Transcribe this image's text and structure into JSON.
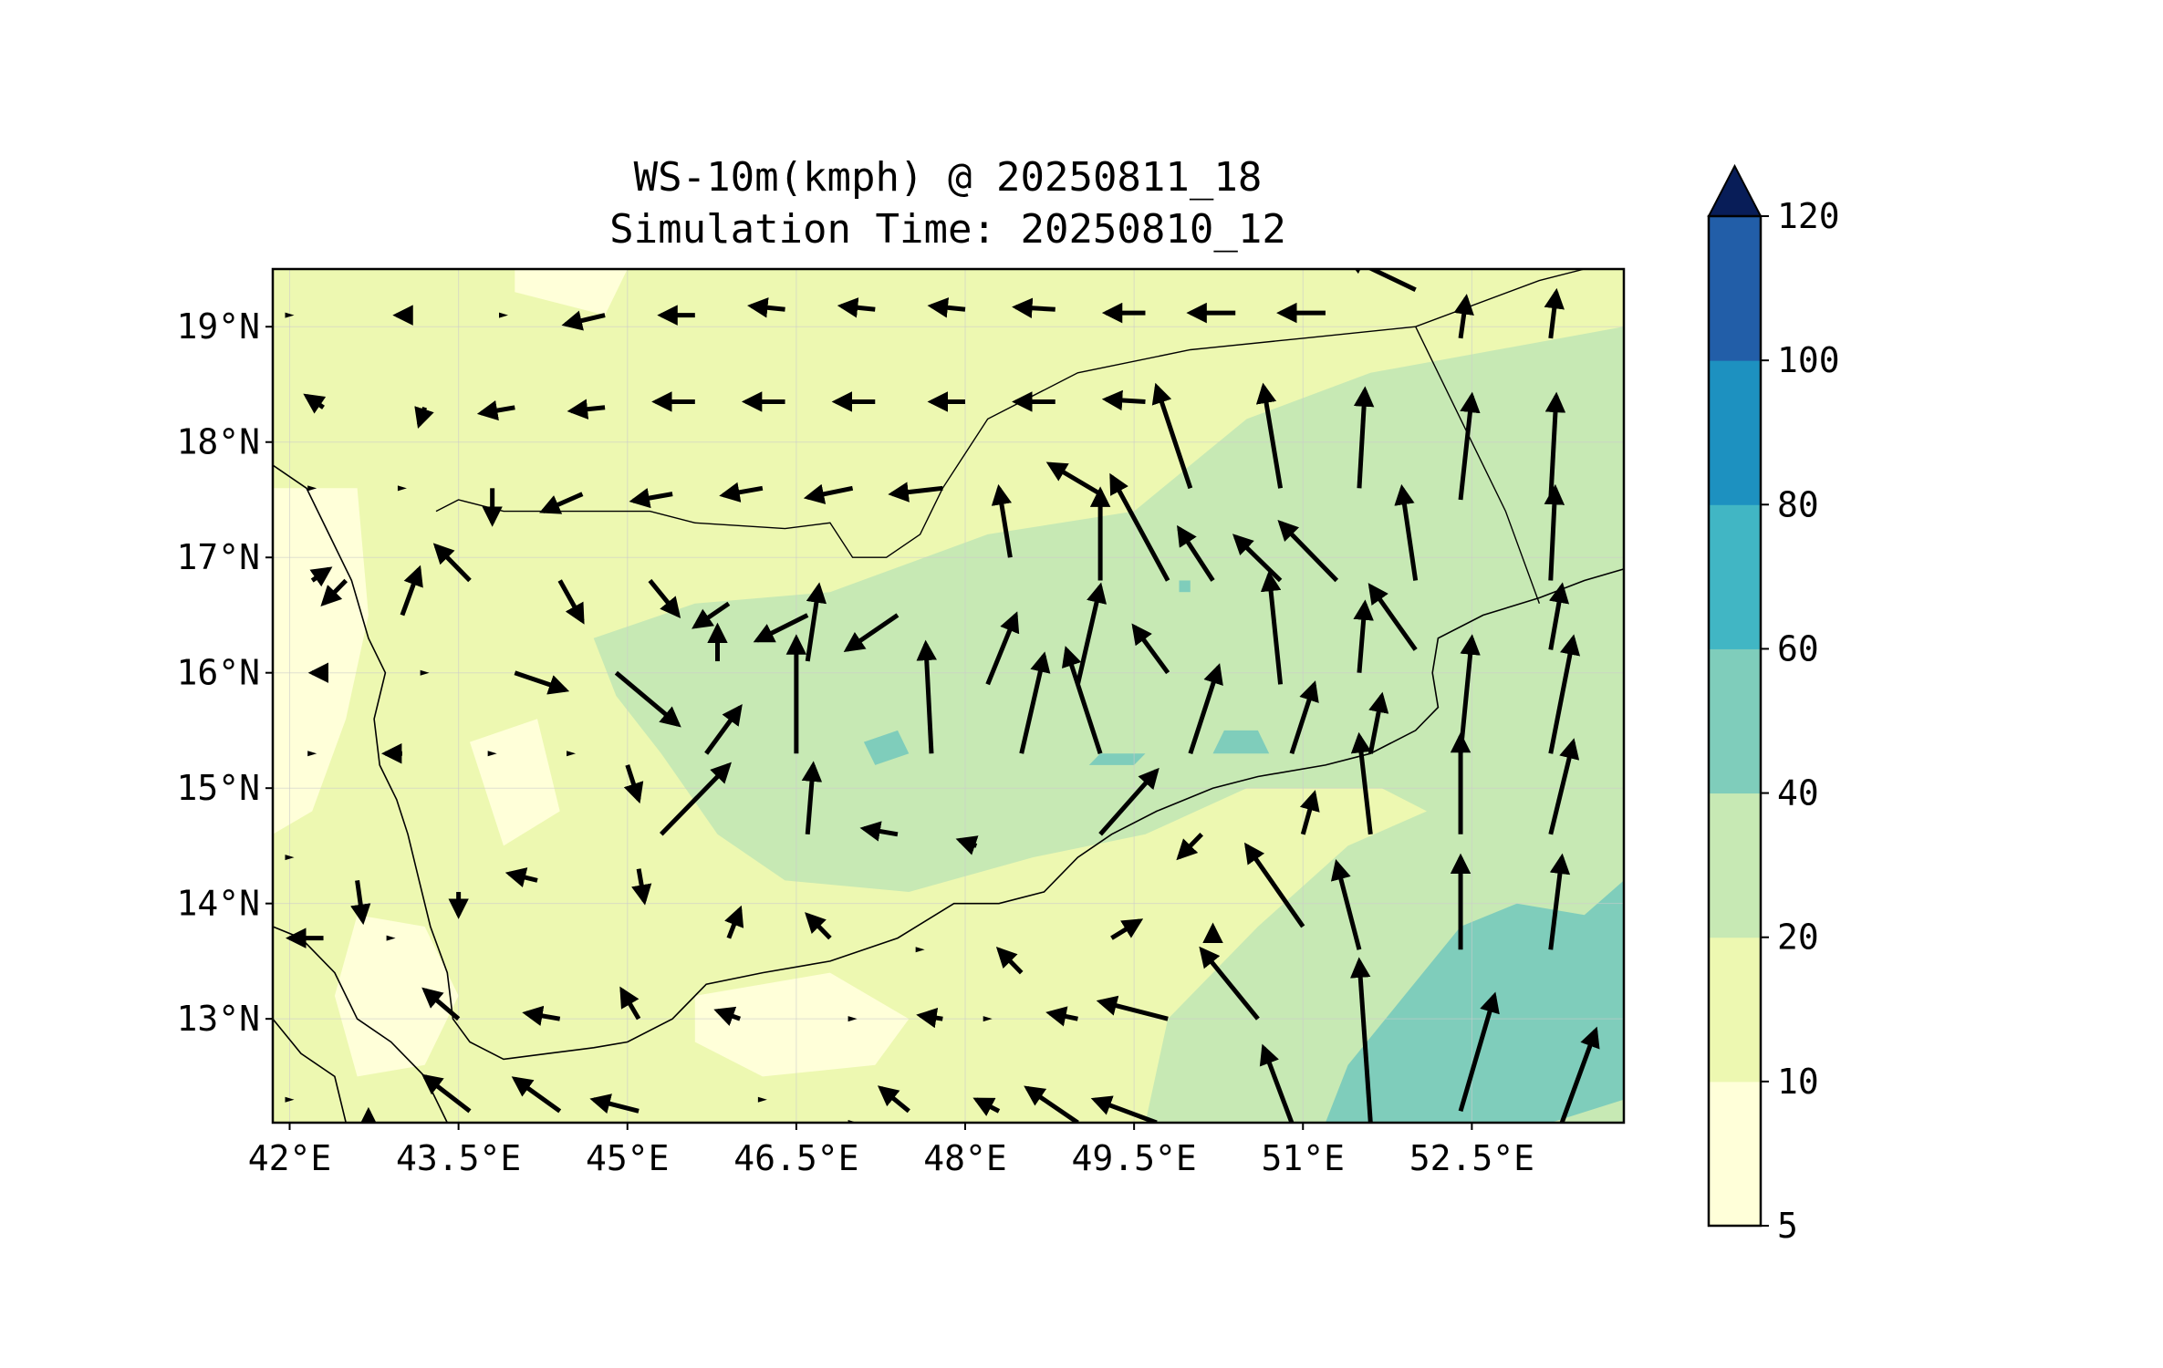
{
  "title": {
    "line1": "WS-10m(kmph) @ 20250811_18",
    "line2": "Simulation Time: 20250810_12"
  },
  "map": {
    "lon_range": [
      41.85,
      53.85
    ],
    "lat_range": [
      12.1,
      19.5
    ],
    "lon_ticks": [
      {
        "value": 42.0,
        "label": "42°E"
      },
      {
        "value": 43.5,
        "label": "43.5°E"
      },
      {
        "value": 45.0,
        "label": "45°E"
      },
      {
        "value": 46.5,
        "label": "46.5°E"
      },
      {
        "value": 48.0,
        "label": "48°E"
      },
      {
        "value": 49.5,
        "label": "49.5°E"
      },
      {
        "value": 51.0,
        "label": "51°E"
      },
      {
        "value": 52.5,
        "label": "52.5°E"
      }
    ],
    "lat_ticks": [
      {
        "value": 13,
        "label": "13°N"
      },
      {
        "value": 14,
        "label": "14°N"
      },
      {
        "value": 15,
        "label": "15°N"
      },
      {
        "value": 16,
        "label": "16°N"
      },
      {
        "value": 17,
        "label": "17°N"
      },
      {
        "value": 18,
        "label": "18°N"
      },
      {
        "value": 19,
        "label": "19°N"
      }
    ],
    "gridlines": true
  },
  "colorbar": {
    "levels": [
      5,
      10,
      20,
      40,
      60,
      80,
      100,
      120
    ],
    "labels": [
      "5",
      "10",
      "20",
      "40",
      "60",
      "80",
      "100",
      "120"
    ],
    "colors": [
      "#ffffd9",
      "#edf8b1",
      "#c7e9b4",
      "#7fcdbb",
      "#41b6c4",
      "#1d91c0",
      "#225ea8",
      "#0c2c84"
    ],
    "extend_color": "#081d58",
    "extend": "max"
  },
  "field_colors": {
    "lt10": "#ffffd9",
    "10_20": "#edf8b1",
    "20_40": "#c7e9b4",
    "40_60": "#7fcdbb"
  },
  "wind_zones": {
    "zone_10_20": [
      [
        41.85,
        19.5
      ],
      [
        53.85,
        19.5
      ],
      [
        53.85,
        12.1
      ],
      [
        41.85,
        12.1
      ]
    ],
    "zone_lt10": [
      [
        [
          41.85,
          17.6
        ],
        [
          42.6,
          17.6
        ],
        [
          42.7,
          16.5
        ],
        [
          42.5,
          15.6
        ],
        [
          42.2,
          14.8
        ],
        [
          41.85,
          14.6
        ]
      ],
      [
        [
          42.6,
          13.9
        ],
        [
          43.2,
          13.8
        ],
        [
          43.5,
          13.2
        ],
        [
          43.2,
          12.6
        ],
        [
          42.6,
          12.5
        ],
        [
          42.4,
          13.2
        ]
      ],
      [
        [
          45.6,
          13.2
        ],
        [
          46.8,
          13.4
        ],
        [
          47.5,
          13.0
        ],
        [
          47.2,
          12.6
        ],
        [
          46.2,
          12.5
        ],
        [
          45.6,
          12.8
        ]
      ],
      [
        [
          44.0,
          19.3
        ],
        [
          44.8,
          19.1
        ],
        [
          45.0,
          19.5
        ],
        [
          44.0,
          19.5
        ]
      ],
      [
        [
          43.6,
          15.4
        ],
        [
          44.2,
          15.6
        ],
        [
          44.4,
          14.8
        ],
        [
          43.9,
          14.5
        ]
      ]
    ],
    "zone_20_40": [
      [
        [
          44.7,
          16.3
        ],
        [
          45.6,
          16.6
        ],
        [
          46.8,
          16.7
        ],
        [
          48.2,
          17.2
        ],
        [
          49.5,
          17.4
        ],
        [
          50.5,
          18.2
        ],
        [
          51.6,
          18.6
        ],
        [
          53.85,
          19.0
        ],
        [
          53.85,
          12.1
        ],
        [
          49.6,
          12.1
        ],
        [
          49.8,
          13.0
        ],
        [
          50.6,
          13.8
        ],
        [
          51.4,
          14.5
        ],
        [
          52.1,
          14.8
        ],
        [
          51.7,
          15.0
        ],
        [
          50.5,
          15.0
        ],
        [
          49.6,
          14.6
        ],
        [
          48.6,
          14.4
        ],
        [
          47.5,
          14.1
        ],
        [
          46.4,
          14.2
        ],
        [
          45.8,
          14.6
        ],
        [
          45.3,
          15.3
        ],
        [
          44.9,
          15.8
        ]
      ]
    ],
    "zone_40_60": [
      [
        [
          51.2,
          12.1
        ],
        [
          51.4,
          12.6
        ],
        [
          51.9,
          13.2
        ],
        [
          52.4,
          13.8
        ],
        [
          52.9,
          14.0
        ],
        [
          53.5,
          13.9
        ],
        [
          53.85,
          14.2
        ],
        [
          53.85,
          12.3
        ],
        [
          53.2,
          12.1
        ]
      ],
      [
        [
          47.1,
          15.4
        ],
        [
          47.4,
          15.5
        ],
        [
          47.5,
          15.3
        ],
        [
          47.2,
          15.2
        ]
      ],
      [
        [
          49.2,
          15.3
        ],
        [
          49.6,
          15.3
        ],
        [
          49.5,
          15.2
        ],
        [
          49.1,
          15.2
        ]
      ],
      [
        [
          50.3,
          15.5
        ],
        [
          50.6,
          15.5
        ],
        [
          50.7,
          15.3
        ],
        [
          50.2,
          15.3
        ]
      ],
      [
        [
          49.9,
          16.8
        ],
        [
          50.0,
          16.8
        ],
        [
          50.0,
          16.7
        ],
        [
          49.9,
          16.7
        ]
      ]
    ]
  },
  "coastlines": [
    [
      [
        41.85,
        17.8
      ],
      [
        42.15,
        17.6
      ],
      [
        42.35,
        17.2
      ],
      [
        42.55,
        16.8
      ],
      [
        42.7,
        16.3
      ],
      [
        42.85,
        16.0
      ],
      [
        42.75,
        15.6
      ],
      [
        42.8,
        15.2
      ],
      [
        42.95,
        14.9
      ],
      [
        43.05,
        14.6
      ],
      [
        43.15,
        14.2
      ],
      [
        43.25,
        13.8
      ],
      [
        43.4,
        13.4
      ],
      [
        43.45,
        13.0
      ],
      [
        43.6,
        12.8
      ],
      [
        43.9,
        12.65
      ],
      [
        44.3,
        12.7
      ],
      [
        44.7,
        12.75
      ],
      [
        45.0,
        12.8
      ],
      [
        45.4,
        13.0
      ],
      [
        45.7,
        13.3
      ],
      [
        46.2,
        13.4
      ],
      [
        46.8,
        13.5
      ],
      [
        47.4,
        13.7
      ],
      [
        47.9,
        14.0
      ],
      [
        48.3,
        14.0
      ],
      [
        48.7,
        14.1
      ],
      [
        49.0,
        14.4
      ],
      [
        49.3,
        14.6
      ],
      [
        49.7,
        14.8
      ],
      [
        50.2,
        15.0
      ],
      [
        50.6,
        15.1
      ],
      [
        51.2,
        15.2
      ],
      [
        51.6,
        15.3
      ],
      [
        52.0,
        15.5
      ],
      [
        52.2,
        15.7
      ],
      [
        52.15,
        16.0
      ],
      [
        52.2,
        16.3
      ],
      [
        52.6,
        16.5
      ],
      [
        53.1,
        16.65
      ],
      [
        53.5,
        16.8
      ],
      [
        53.85,
        16.9
      ]
    ],
    [
      [
        41.85,
        13.8
      ],
      [
        42.1,
        13.7
      ],
      [
        42.4,
        13.4
      ],
      [
        42.6,
        13.0
      ],
      [
        42.9,
        12.8
      ],
      [
        43.2,
        12.5
      ],
      [
        43.4,
        12.1
      ]
    ],
    [
      [
        41.85,
        13.0
      ],
      [
        42.1,
        12.7
      ],
      [
        42.4,
        12.5
      ],
      [
        42.5,
        12.1
      ]
    ]
  ],
  "borders": [
    [
      [
        43.3,
        17.4
      ],
      [
        43.5,
        17.5
      ],
      [
        43.9,
        17.4
      ],
      [
        44.6,
        17.4
      ],
      [
        45.2,
        17.4
      ],
      [
        45.6,
        17.3
      ],
      [
        46.4,
        17.25
      ],
      [
        46.8,
        17.3
      ],
      [
        47.0,
        17.0
      ],
      [
        47.3,
        17.0
      ],
      [
        47.6,
        17.2
      ],
      [
        47.8,
        17.6
      ],
      [
        48.2,
        18.2
      ],
      [
        49.0,
        18.6
      ],
      [
        50.0,
        18.8
      ],
      [
        51.0,
        18.9
      ],
      [
        52.0,
        19.0
      ],
      [
        53.1,
        19.4
      ],
      [
        53.5,
        19.5
      ]
    ],
    [
      [
        52.0,
        19.0
      ],
      [
        52.4,
        18.2
      ],
      [
        52.8,
        17.4
      ],
      [
        53.1,
        16.6
      ]
    ]
  ],
  "wind_vectors": [
    [
      42.0,
      19.1,
      0,
      0
    ],
    [
      43.0,
      19.1,
      -0.05,
      0
    ],
    [
      43.9,
      19.1,
      0,
      0
    ],
    [
      44.8,
      19.1,
      -0.35,
      -0.08
    ],
    [
      45.6,
      19.1,
      -0.3,
      0
    ],
    [
      46.4,
      19.15,
      -0.3,
      0.03
    ],
    [
      47.2,
      19.15,
      -0.3,
      0.03
    ],
    [
      48.0,
      19.15,
      -0.3,
      0.03
    ],
    [
      48.8,
      19.15,
      -0.35,
      0.02
    ],
    [
      49.6,
      19.12,
      -0.35,
      0
    ],
    [
      50.4,
      19.12,
      -0.4,
      0
    ],
    [
      51.2,
      19.12,
      -0.4,
      0
    ],
    [
      52.0,
      19.32,
      -0.6,
      0.28
    ],
    [
      52.4,
      18.9,
      0.05,
      0.35
    ],
    [
      53.2,
      18.9,
      0.05,
      0.4
    ],
    [
      42.3,
      18.3,
      -0.15,
      0.1
    ],
    [
      43.2,
      18.3,
      -0.05,
      -0.15
    ],
    [
      44.0,
      18.3,
      -0.3,
      -0.05
    ],
    [
      44.8,
      18.3,
      -0.3,
      -0.03
    ],
    [
      45.6,
      18.35,
      -0.35,
      0
    ],
    [
      46.4,
      18.35,
      -0.35,
      0
    ],
    [
      47.2,
      18.35,
      -0.35,
      0
    ],
    [
      48.0,
      18.35,
      -0.3,
      0
    ],
    [
      48.8,
      18.35,
      -0.35,
      0
    ],
    [
      49.6,
      18.35,
      -0.35,
      0.02
    ],
    [
      50.0,
      17.6,
      -0.3,
      0.88
    ],
    [
      50.8,
      17.6,
      -0.15,
      0.88
    ],
    [
      51.5,
      17.6,
      0.05,
      0.85
    ],
    [
      52.4,
      17.5,
      0.1,
      0.9
    ],
    [
      53.2,
      17.5,
      0.05,
      0.9
    ],
    [
      42.2,
      17.6,
      0,
      0
    ],
    [
      43.0,
      17.6,
      0,
      0
    ],
    [
      43.8,
      17.6,
      0,
      -0.3
    ],
    [
      44.6,
      17.55,
      -0.35,
      -0.15
    ],
    [
      45.4,
      17.55,
      -0.35,
      -0.06
    ],
    [
      46.2,
      17.6,
      -0.35,
      -0.06
    ],
    [
      47.0,
      17.6,
      -0.4,
      -0.08
    ],
    [
      47.8,
      17.6,
      -0.45,
      -0.05
    ],
    [
      48.4,
      17.0,
      -0.1,
      0.6
    ],
    [
      49.2,
      17.55,
      -0.45,
      0.26
    ],
    [
      49.2,
      16.8,
      0,
      0.78
    ],
    [
      49.8,
      16.8,
      -0.5,
      0.9
    ],
    [
      50.2,
      16.8,
      -0.3,
      0.45
    ],
    [
      50.8,
      16.8,
      -0.4,
      0.38
    ],
    [
      51.3,
      16.8,
      -0.5,
      0.5
    ],
    [
      52.0,
      16.8,
      -0.12,
      0.8
    ],
    [
      53.2,
      16.8,
      0.04,
      0.8
    ],
    [
      42.2,
      16.8,
      0.15,
      0.1
    ],
    [
      42.5,
      16.8,
      -0.2,
      -0.2
    ],
    [
      43.0,
      16.5,
      0.15,
      0.4
    ],
    [
      43.6,
      16.8,
      -0.3,
      0.3
    ],
    [
      44.4,
      16.8,
      0.2,
      -0.35
    ],
    [
      45.2,
      16.8,
      0.25,
      -0.3
    ],
    [
      45.9,
      16.6,
      -0.3,
      -0.2
    ],
    [
      46.6,
      16.5,
      -0.45,
      -0.22
    ],
    [
      47.4,
      16.5,
      -0.45,
      -0.3
    ],
    [
      48.2,
      15.9,
      0.25,
      0.6
    ],
    [
      49.0,
      15.9,
      0.2,
      0.85
    ],
    [
      49.8,
      16.0,
      -0.3,
      0.4
    ],
    [
      50.8,
      15.9,
      -0.1,
      0.95
    ],
    [
      51.5,
      16.0,
      0.05,
      0.6
    ],
    [
      52.0,
      16.2,
      -0.4,
      0.55
    ],
    [
      53.2,
      16.2,
      0.1,
      0.55
    ],
    [
      42.3,
      16.0,
      -0.1,
      0
    ],
    [
      43.2,
      16.0,
      0,
      0
    ],
    [
      44.0,
      16.0,
      0.45,
      -0.15
    ],
    [
      44.9,
      16.0,
      0.55,
      -0.45
    ],
    [
      45.8,
      16.1,
      0,
      0.3
    ],
    [
      46.5,
      15.3,
      0,
      1.0
    ],
    [
      46.6,
      16.1,
      0.1,
      0.65
    ],
    [
      47.7,
      15.3,
      -0.05,
      0.95
    ],
    [
      48.5,
      15.3,
      0.2,
      0.85
    ],
    [
      49.2,
      15.3,
      -0.3,
      0.9
    ],
    [
      50.0,
      15.3,
      0.25,
      0.75
    ],
    [
      50.9,
      15.3,
      0.2,
      0.6
    ],
    [
      51.6,
      15.3,
      0.1,
      0.5
    ],
    [
      52.4,
      15.3,
      0.1,
      1.0
    ],
    [
      53.2,
      15.3,
      0.2,
      1.0
    ],
    [
      42.2,
      15.3,
      0,
      0
    ],
    [
      43.0,
      15.3,
      -0.15,
      0
    ],
    [
      43.8,
      15.3,
      0,
      0
    ],
    [
      44.5,
      15.3,
      0,
      0
    ],
    [
      45.0,
      15.2,
      0.1,
      -0.3
    ],
    [
      45.7,
      15.3,
      0.3,
      0.4
    ],
    [
      45.3,
      14.6,
      0.6,
      0.6
    ],
    [
      46.6,
      14.6,
      0.05,
      0.6
    ],
    [
      47.4,
      14.6,
      -0.3,
      0.05
    ],
    [
      48.1,
      14.5,
      -0.15,
      0.05
    ],
    [
      49.2,
      14.6,
      0.5,
      0.55
    ],
    [
      50.1,
      14.6,
      -0.2,
      -0.2
    ],
    [
      51.0,
      14.6,
      0.1,
      0.35
    ],
    [
      51.6,
      14.6,
      -0.1,
      0.85
    ],
    [
      52.4,
      14.6,
      0,
      0.85
    ],
    [
      53.2,
      14.6,
      0.2,
      0.8
    ],
    [
      42.0,
      14.4,
      0,
      0
    ],
    [
      42.6,
      14.2,
      0.05,
      -0.35
    ],
    [
      43.5,
      14.1,
      0,
      -0.2
    ],
    [
      44.2,
      14.2,
      -0.25,
      0.06
    ],
    [
      45.1,
      14.3,
      0.05,
      -0.28
    ],
    [
      45.9,
      13.7,
      0.1,
      0.25
    ],
    [
      46.8,
      13.7,
      -0.2,
      0.2
    ],
    [
      47.6,
      13.6,
      0,
      0
    ],
    [
      48.5,
      13.4,
      -0.2,
      0.2
    ],
    [
      49.3,
      13.7,
      0.25,
      0.15
    ],
    [
      50.2,
      13.7,
      0,
      0.1
    ],
    [
      51.0,
      13.8,
      -0.5,
      0.7
    ],
    [
      51.5,
      13.6,
      -0.2,
      0.75
    ],
    [
      52.4,
      13.6,
      0,
      0.8
    ],
    [
      53.2,
      13.6,
      0.1,
      0.8
    ],
    [
      42.3,
      13.7,
      -0.3,
      0
    ],
    [
      42.9,
      13.7,
      0,
      0
    ],
    [
      43.5,
      13.0,
      -0.3,
      0.25
    ],
    [
      44.4,
      13.0,
      -0.3,
      0.05
    ],
    [
      45.1,
      13.0,
      -0.15,
      0.25
    ],
    [
      46.0,
      13.0,
      -0.2,
      0.07
    ],
    [
      47.0,
      13.0,
      0,
      0
    ],
    [
      47.8,
      13.0,
      -0.2,
      0.03
    ],
    [
      48.2,
      13.0,
      0,
      0
    ],
    [
      49.0,
      13.0,
      -0.25,
      0.05
    ],
    [
      49.8,
      13.0,
      -0.6,
      0.15
    ],
    [
      50.6,
      13.0,
      -0.5,
      0.6
    ],
    [
      51.6,
      12.1,
      -0.1,
      1.4
    ],
    [
      52.4,
      12.2,
      0.3,
      1.0
    ],
    [
      53.3,
      12.1,
      0.3,
      0.8
    ],
    [
      42.0,
      12.3,
      0,
      0
    ],
    [
      42.7,
      12.1,
      0,
      0.1
    ],
    [
      43.6,
      12.2,
      -0.4,
      0.3
    ],
    [
      44.4,
      12.2,
      -0.4,
      0.28
    ],
    [
      45.1,
      12.2,
      -0.4,
      0.1
    ],
    [
      46.2,
      12.3,
      0,
      0
    ],
    [
      47.0,
      12.1,
      0,
      0
    ],
    [
      47.5,
      12.2,
      -0.25,
      0.2
    ],
    [
      48.3,
      12.2,
      -0.2,
      0.1
    ],
    [
      49.0,
      12.1,
      -0.45,
      0.3
    ],
    [
      49.7,
      12.1,
      -0.55,
      0.2
    ],
    [
      50.9,
      12.1,
      -0.25,
      0.65
    ]
  ]
}
